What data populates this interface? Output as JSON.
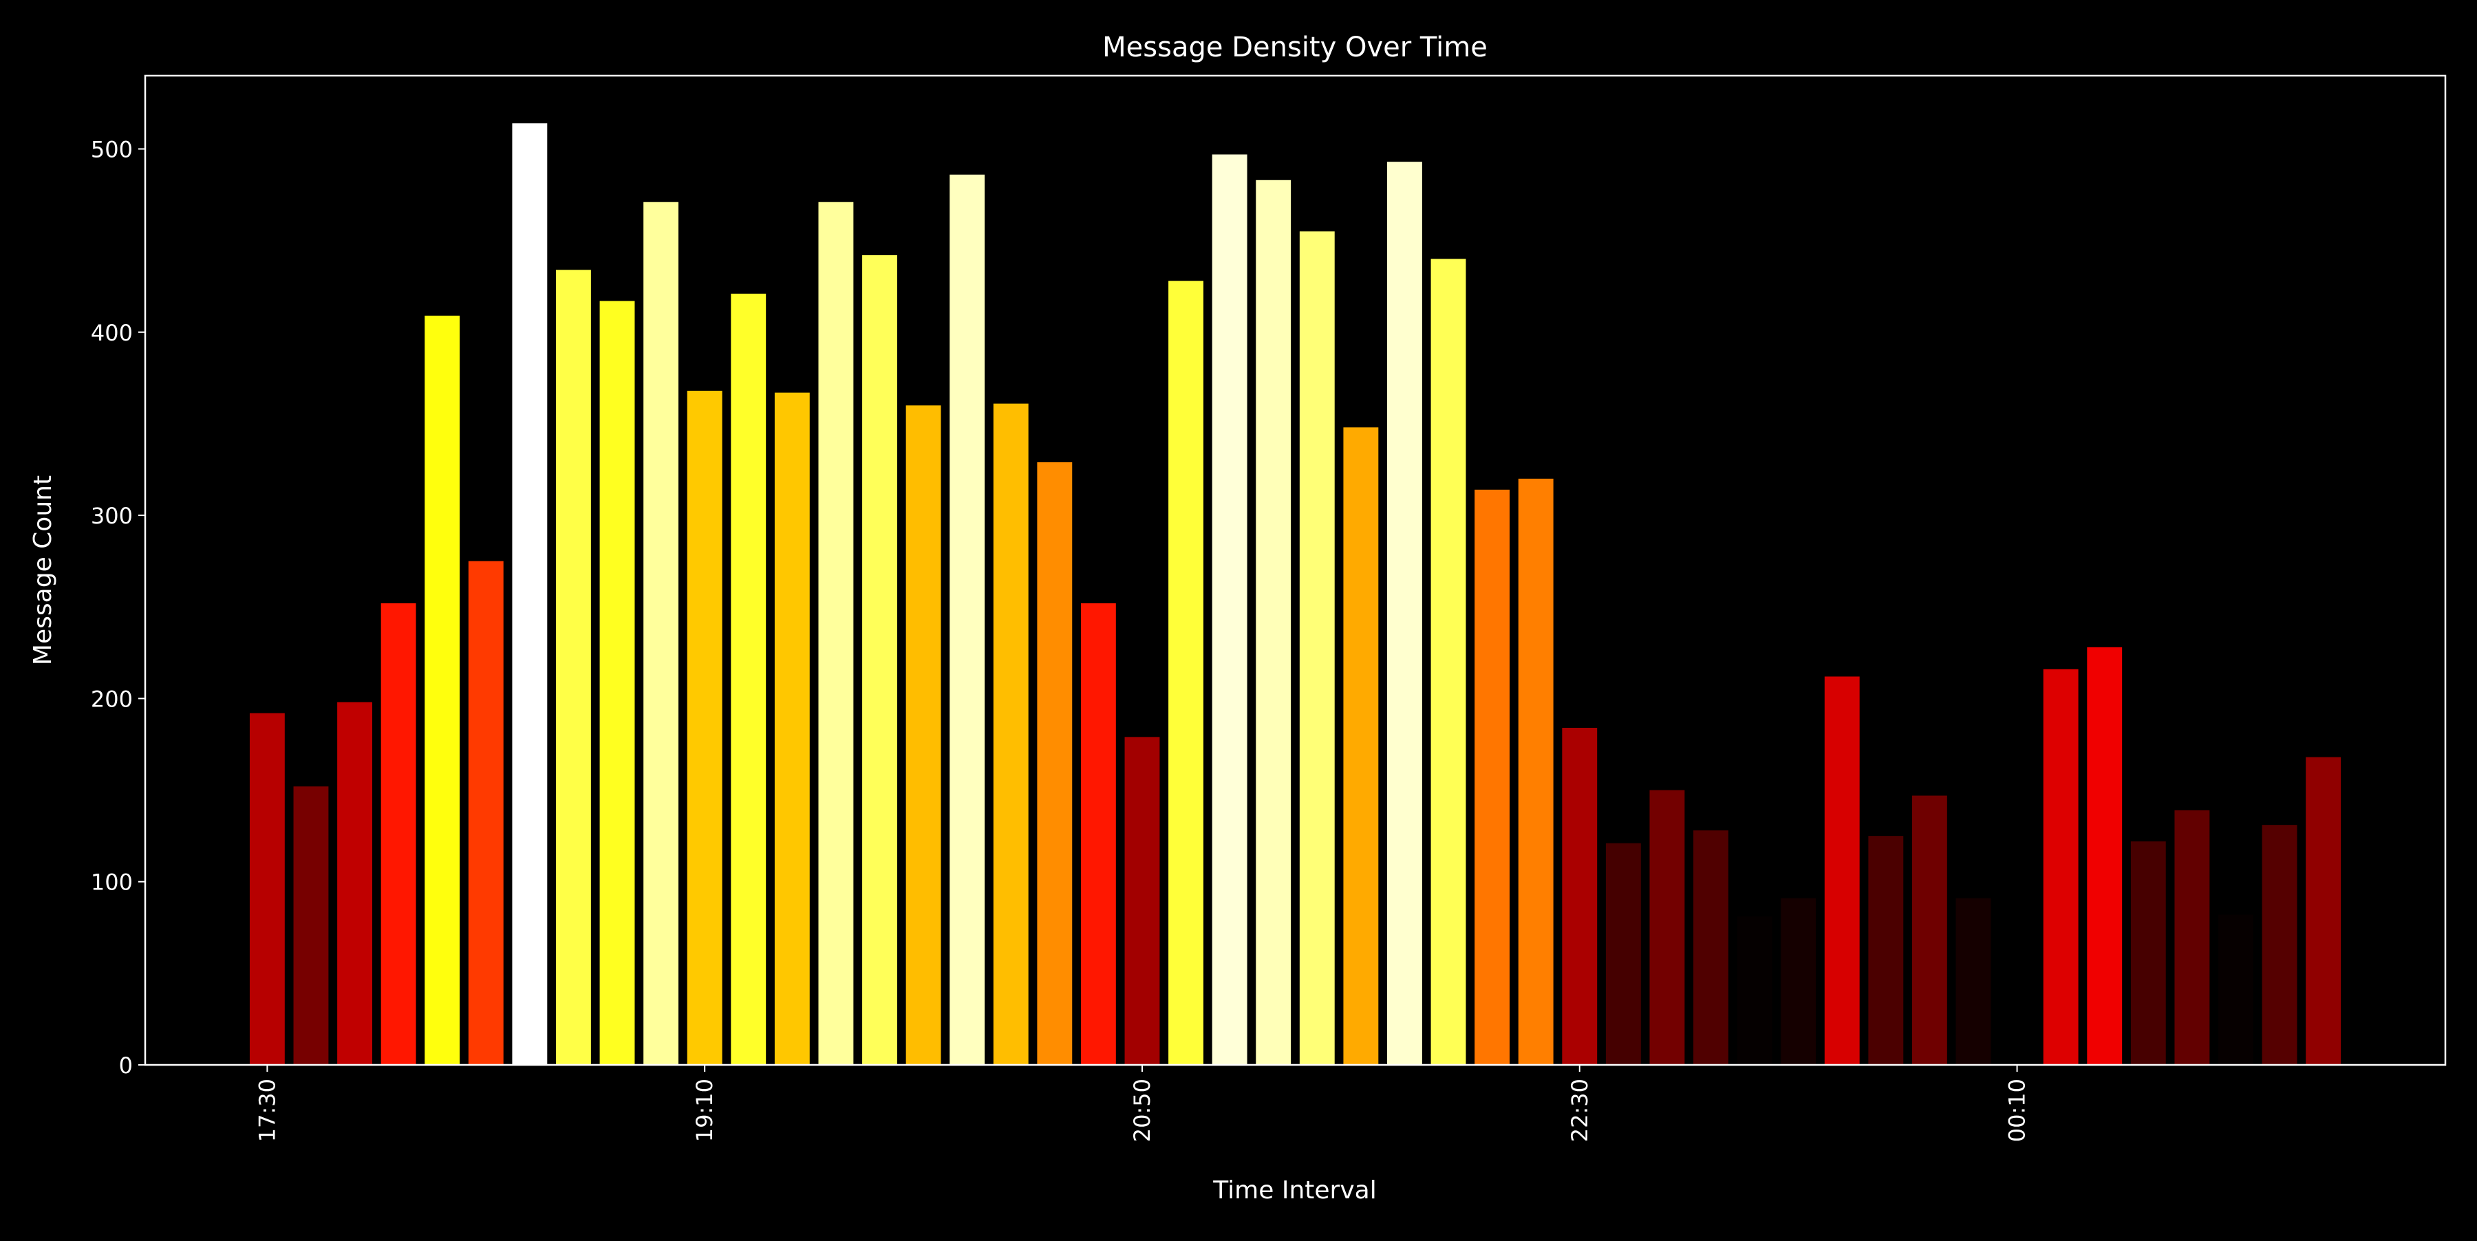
{
  "chart_data": {
    "type": "bar",
    "title": "Message Density Over Time",
    "xlabel": "Time Interval",
    "ylabel": "Message Count",
    "colormap": "hot",
    "background": "#000000",
    "foreground": "#ffffff",
    "grid": false,
    "ylim": [
      0,
      540
    ],
    "yticks": [
      0,
      100,
      200,
      300,
      400,
      500
    ],
    "xtick_labels": [
      {
        "index": 0,
        "label": "17:30"
      },
      {
        "index": 10,
        "label": "19:10"
      },
      {
        "index": 20,
        "label": "20:50"
      },
      {
        "index": 30,
        "label": "22:30"
      },
      {
        "index": 40,
        "label": "00:10"
      }
    ],
    "categories": [
      "17:30",
      "17:40",
      "17:50",
      "18:00",
      "18:10",
      "18:20",
      "18:30",
      "18:40",
      "18:50",
      "19:00",
      "19:10",
      "19:20",
      "19:30",
      "19:40",
      "19:50",
      "20:00",
      "20:10",
      "20:20",
      "20:30",
      "20:40",
      "20:50",
      "21:00",
      "21:10",
      "21:20",
      "21:30",
      "21:40",
      "21:50",
      "22:00",
      "22:10",
      "22:20",
      "22:30",
      "22:40",
      "22:50",
      "23:00",
      "23:10",
      "23:20",
      "23:30",
      "23:40",
      "23:50",
      "00:00",
      "00:10",
      "00:20",
      "00:30",
      "00:40",
      "00:50",
      "01:00",
      "01:10",
      "01:20"
    ],
    "values": [
      192,
      152,
      198,
      252,
      409,
      275,
      514,
      434,
      417,
      471,
      368,
      421,
      367,
      471,
      442,
      360,
      486,
      361,
      329,
      252,
      179,
      428,
      497,
      483,
      455,
      348,
      493,
      440,
      314,
      320,
      184,
      121,
      150,
      128,
      81,
      91,
      212,
      125,
      147,
      91,
      78,
      216,
      228,
      122,
      139,
      82,
      131,
      168
    ]
  }
}
